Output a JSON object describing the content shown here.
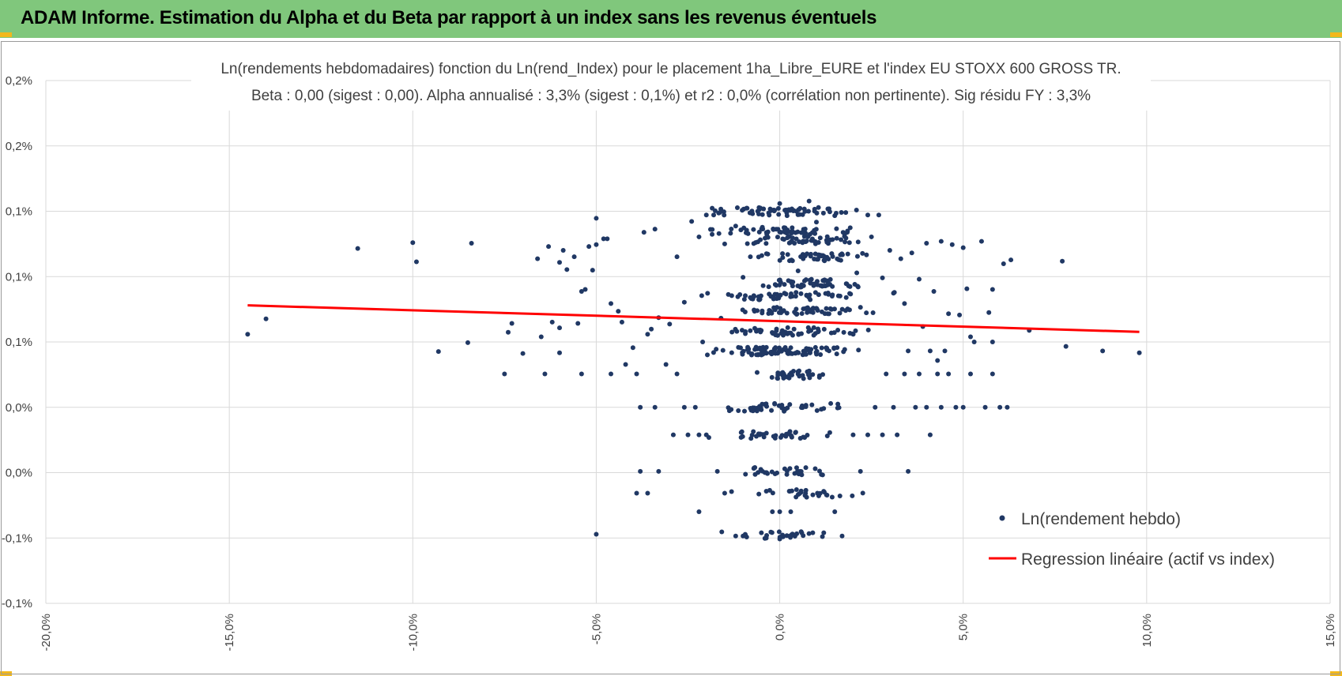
{
  "header": {
    "title": "ADAM Informe. Estimation du Alpha et du Beta par rapport à un index sans les revenus éventuels"
  },
  "colors": {
    "header_bg": "#80c77c",
    "accent": "#f2b81c",
    "points": "#203864",
    "regression": "#ff0000",
    "grid": "#d9d9d9"
  },
  "chart_data": {
    "type": "scatter",
    "title": "Ln(rendements hebdomadaires) fonction du Ln(rend_Index) pour le placement 1ha_Libre_EURE et l'index EU STOXX 600 GROSS TR.",
    "subtitle": "Beta : 0,00 (sigest : 0,00).  Alpha annualisé : 3,3% (sigest : 0,1%) et r2 : 0,0% (corrélation non pertinente). Sig résidu FY : 3,3%",
    "xlabel": "",
    "ylabel": "",
    "xlim": [
      -0.2,
      0.15
    ],
    "ylim": [
      -0.0015,
      0.0025
    ],
    "x_ticks": [
      -0.2,
      -0.15,
      -0.1,
      -0.05,
      0.0,
      0.05,
      0.1,
      0.15
    ],
    "x_tick_labels": [
      "-20,0%",
      "-15,0%",
      "-10,0%",
      "-5,0%",
      "0,0%",
      "5,0%",
      "10,0%",
      "15,0%"
    ],
    "y_ticks": [
      -0.0015,
      -0.001,
      -0.0005,
      0.0,
      0.0005,
      0.001,
      0.0015,
      0.002,
      0.0025
    ],
    "y_tick_labels": [
      "-0,1%",
      "-0,1%",
      "0,0%",
      "0,0%",
      "0,1%",
      "0,1%",
      "0,1%",
      "0,2%",
      "0,2%"
    ],
    "grid": true,
    "legend": {
      "position": "bottom-right"
    },
    "series": [
      {
        "name": "Ln(rendement hebdo)",
        "kind": "points",
        "points": [
          [
            -0.145,
            0.000559
          ],
          [
            -0.14,
            0.000677
          ],
          [
            -0.115,
            0.001215
          ],
          [
            -0.1,
            0.00126
          ],
          [
            -0.099,
            0.001113
          ],
          [
            -0.084,
            0.001255
          ],
          [
            -0.093,
            0.000427
          ],
          [
            -0.085,
            0.000495
          ],
          [
            -0.074,
            0.000574
          ],
          [
            -0.073,
            0.000642
          ],
          [
            -0.07,
            0.000412
          ],
          [
            -0.066,
            0.001137
          ],
          [
            -0.065,
            0.000539
          ],
          [
            -0.063,
            0.00123
          ],
          [
            -0.062,
            0.000652
          ],
          [
            -0.06,
            0.001109
          ],
          [
            -0.06,
            0.000608
          ],
          [
            -0.06,
            0.000417
          ],
          [
            -0.059,
            0.001201
          ],
          [
            -0.058,
            0.001054
          ],
          [
            -0.056,
            0.001152
          ],
          [
            -0.055,
            0.000642
          ],
          [
            -0.054,
            0.000887
          ],
          [
            -0.053,
            0.000902
          ],
          [
            -0.052,
            0.00123
          ],
          [
            -0.05,
            0.001245
          ],
          [
            -0.051,
            0.001049
          ],
          [
            -0.05,
            0.001446
          ],
          [
            -0.048,
            0.001289
          ],
          [
            -0.047,
            0.001289
          ],
          [
            -0.046,
            0.000794
          ],
          [
            -0.044,
            0.000735
          ],
          [
            -0.043,
            0.000652
          ],
          [
            -0.042,
            0.000328
          ],
          [
            -0.04,
            0.000456
          ],
          [
            -0.037,
            0.001339
          ],
          [
            -0.036,
            0.000559
          ],
          [
            -0.035,
            0.000598
          ],
          [
            -0.034,
            0.001363
          ],
          [
            -0.033,
            0.000686
          ],
          [
            -0.031,
            0.000328
          ],
          [
            -0.03,
            0.000637
          ],
          [
            -0.028,
            0.001152
          ],
          [
            -0.026,
            0.000804
          ],
          [
            -0.024,
            0.001422
          ],
          [
            -0.022,
            0.001304
          ],
          [
            -0.021,
            0.0005
          ],
          [
            -0.02,
            0.001471
          ],
          [
            -0.018,
            0.001471
          ],
          [
            -0.016,
            0.000682
          ],
          [
            -0.015,
            0.00125
          ],
          [
            -0.014,
            0.000863
          ],
          [
            -0.012,
            0.001387
          ],
          [
            -0.01,
            0.000995
          ],
          [
            -0.008,
            0.001152
          ],
          [
            -0.007,
            0.000745
          ],
          [
            -0.006,
            0.0015
          ],
          [
            -0.004,
            0.001294
          ],
          [
            -0.003,
            0.000922
          ],
          [
            0.0,
            0.001559
          ],
          [
            0.002,
            0.001466
          ],
          [
            0.004,
            0.001255
          ],
          [
            0.005,
            0.001044
          ],
          [
            0.007,
            0.000755
          ],
          [
            0.008,
            0.001578
          ],
          [
            0.01,
            0.001417
          ],
          [
            0.012,
            0.001157
          ],
          [
            0.013,
            0.000936
          ],
          [
            0.015,
            0.001466
          ],
          [
            0.016,
            0.000853
          ],
          [
            0.018,
            0.00149
          ],
          [
            0.019,
            0.00126
          ],
          [
            0.021,
            0.001029
          ],
          [
            0.022,
            0.000765
          ],
          [
            0.024,
            0.001471
          ],
          [
            0.025,
            0.001304
          ],
          [
            0.027,
            0.001471
          ],
          [
            0.028,
            0.00099
          ],
          [
            0.03,
            0.001201
          ],
          [
            0.031,
            0.000873
          ],
          [
            0.033,
            0.001137
          ],
          [
            0.034,
            0.000794
          ],
          [
            0.035,
            0.000431
          ],
          [
            0.036,
            0.001181
          ],
          [
            0.038,
            0.00098
          ],
          [
            0.039,
            0.000618
          ],
          [
            0.04,
            0.001255
          ],
          [
            0.041,
            0.000431
          ],
          [
            0.042,
            0.000887
          ],
          [
            0.043,
            0.000358
          ],
          [
            0.044,
            0.00127
          ],
          [
            0.045,
            0.000431
          ],
          [
            0.046,
            0.000716
          ],
          [
            0.047,
            0.001245
          ],
          [
            0.049,
            0.000706
          ],
          [
            0.05,
            0.001221
          ],
          [
            0.051,
            0.000907
          ],
          [
            0.052,
            0.000539
          ],
          [
            0.053,
            0.0005
          ],
          [
            0.055,
            0.00127
          ],
          [
            0.056,
            0.0
          ],
          [
            0.057,
            0.000725
          ],
          [
            0.058,
            0.000902
          ],
          [
            0.06,
            0.0
          ],
          [
            0.061,
            0.001098
          ],
          [
            0.052,
            0.000255
          ],
          [
            0.058,
            0.000255
          ],
          [
            0.062,
            0.0
          ],
          [
            0.063,
            0.001128
          ],
          [
            0.068,
            0.000588
          ],
          [
            0.058,
            0.0005
          ],
          [
            0.078,
            0.000466
          ],
          [
            0.077,
            0.001118
          ],
          [
            0.088,
            0.000431
          ],
          [
            0.098,
            0.000417
          ],
          [
            0.05,
            0.0
          ],
          [
            -0.075,
            0.000255
          ],
          [
            -0.064,
            0.000255
          ],
          [
            -0.054,
            0.000255
          ],
          [
            -0.046,
            0.000255
          ],
          [
            -0.05,
            -0.000971
          ],
          [
            -0.039,
            0.000255
          ],
          [
            -0.038,
            0.0
          ],
          [
            -0.034,
            0.0
          ],
          [
            -0.038,
            -0.00049
          ],
          [
            -0.039,
            -0.000657
          ],
          [
            -0.036,
            -0.000657
          ],
          [
            -0.033,
            -0.00049
          ],
          [
            -0.029,
            -0.000211
          ],
          [
            -0.025,
            -0.000211
          ],
          [
            -0.022,
            -0.000211
          ],
          [
            -0.028,
            0.000255
          ],
          [
            -0.026,
            0.0
          ],
          [
            -0.023,
            0.0
          ],
          [
            -0.02,
            -0.000211
          ],
          [
            -0.017,
            -0.00049
          ],
          [
            -0.022,
            -0.000799
          ],
          [
            -0.015,
            -0.000657
          ],
          [
            -0.012,
            -0.000985
          ],
          [
            -0.01,
            -0.000985
          ],
          [
            -0.005,
            -0.00096
          ],
          [
            -0.002,
            -0.000799
          ],
          [
            0.0,
            -0.000799
          ],
          [
            0.003,
            -0.000799
          ],
          [
            0.006,
            -0.00096
          ],
          [
            0.009,
            -0.00096
          ],
          [
            0.012,
            -0.00096
          ],
          [
            0.015,
            -0.000799
          ],
          [
            0.017,
            -0.000985
          ],
          [
            0.02,
            -0.000211
          ],
          [
            0.022,
            -0.00049
          ],
          [
            0.024,
            -0.000211
          ],
          [
            0.026,
            0.0
          ],
          [
            0.028,
            -0.000211
          ],
          [
            0.029,
            0.000255
          ],
          [
            0.031,
            0.0
          ],
          [
            0.032,
            -0.000211
          ],
          [
            0.034,
            0.000255
          ],
          [
            0.035,
            -0.00049
          ],
          [
            0.037,
            0.0
          ],
          [
            0.038,
            0.000255
          ],
          [
            0.04,
            0.0
          ],
          [
            0.041,
            -0.000211
          ],
          [
            0.043,
            0.000255
          ],
          [
            0.044,
            0.0
          ],
          [
            0.046,
            0.000255
          ],
          [
            0.048,
            0.0
          ]
        ],
        "clusters": [
          {
            "y": 0.00043,
            "x_min": -0.025,
            "x_max": 0.03,
            "n": 90
          },
          {
            "y": 0.00074,
            "x_min": -0.015,
            "x_max": 0.03,
            "n": 55
          },
          {
            "y": 0.00095,
            "x_min": -0.012,
            "x_max": 0.03,
            "n": 50
          },
          {
            "y": 0.00115,
            "x_min": -0.012,
            "x_max": 0.03,
            "n": 45
          },
          {
            "y": 0.00128,
            "x_min": -0.012,
            "x_max": 0.028,
            "n": 45
          },
          {
            "y": 0.00058,
            "x_min": -0.02,
            "x_max": 0.03,
            "n": 55
          },
          {
            "y": 0.00025,
            "x_min": -0.01,
            "x_max": 0.018,
            "n": 35
          },
          {
            "y": 0.0,
            "x_min": -0.025,
            "x_max": 0.025,
            "n": 45
          },
          {
            "y": -0.00021,
            "x_min": -0.022,
            "x_max": 0.022,
            "n": 35
          },
          {
            "y": -0.00049,
            "x_min": -0.02,
            "x_max": 0.02,
            "n": 30
          },
          {
            "y": -0.00066,
            "x_min": -0.016,
            "x_max": 0.028,
            "n": 30
          },
          {
            "y": -0.00098,
            "x_min": -0.018,
            "x_max": 0.018,
            "n": 25
          },
          {
            "y": 0.0015,
            "x_min": -0.03,
            "x_max": 0.03,
            "n": 60
          },
          {
            "y": 0.00135,
            "x_min": -0.028,
            "x_max": 0.03,
            "n": 55
          },
          {
            "y": 0.00085,
            "x_min": -0.03,
            "x_max": 0.035,
            "n": 55
          }
        ]
      },
      {
        "name": "Regression linéaire (actif vs index)",
        "kind": "line",
        "x": [
          -0.145,
          0.098
        ],
        "y": [
          0.00078,
          0.000577
        ]
      }
    ]
  }
}
